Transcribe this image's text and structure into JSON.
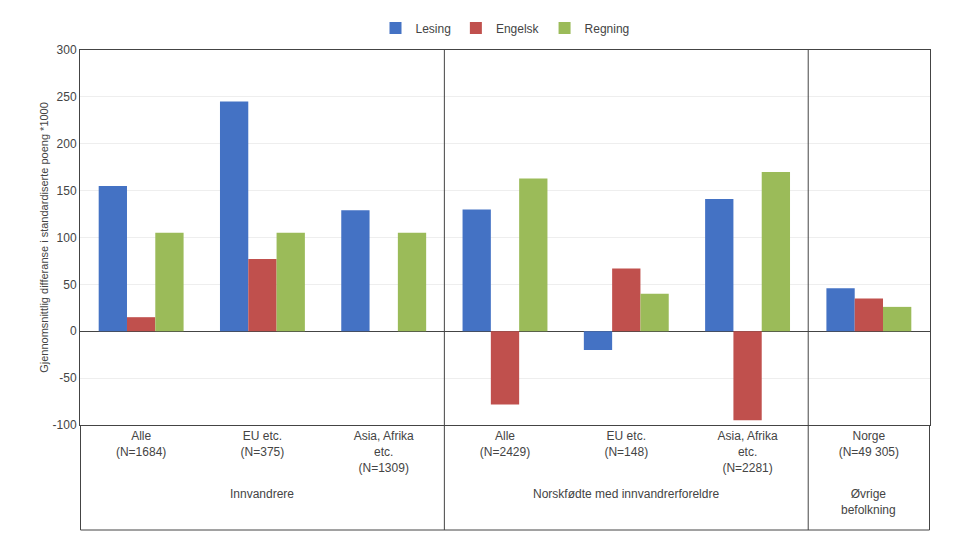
{
  "chart_data": {
    "type": "bar",
    "categories": [
      "Alle\n(N=1684)",
      "EU etc.\n(N=375)",
      "Asia, Afrika\netc.\n(N=1309)",
      "Alle\n(N=2429)",
      "EU etc.\n(N=148)",
      "Asia, Afrika\netc.\n(N=2281)",
      "Norge\n(N=49 305)"
    ],
    "series": [
      {
        "name": "Lesing",
        "color": "#4472C4",
        "values": [
          155,
          245,
          129,
          130,
          -20,
          141,
          46
        ]
      },
      {
        "name": "Engelsk",
        "color": "#C0504D",
        "values": [
          15,
          77,
          0,
          -78,
          67,
          -95,
          35
        ]
      },
      {
        "name": "Regning",
        "color": "#9BBB59",
        "values": [
          105,
          105,
          105,
          163,
          40,
          170,
          26
        ]
      }
    ],
    "y_label": "Gjennomsnittlig differanse i standardiserte poeng *1000",
    "annotations": [
      {
        "text": "Innvandrere",
        "x": [
          0,
          2
        ]
      },
      {
        "text": "Norskfødte med innvandrerforeldre",
        "x": [
          3,
          5
        ]
      },
      {
        "text": "Øvrige\nbefolkning",
        "x": [
          6,
          6
        ]
      }
    ],
    "ylim": [
      -100,
      300
    ],
    "yticks": [
      -100,
      -50,
      0,
      50,
      100,
      150,
      200,
      250,
      300
    ],
    "grid": true,
    "legend": "top"
  }
}
